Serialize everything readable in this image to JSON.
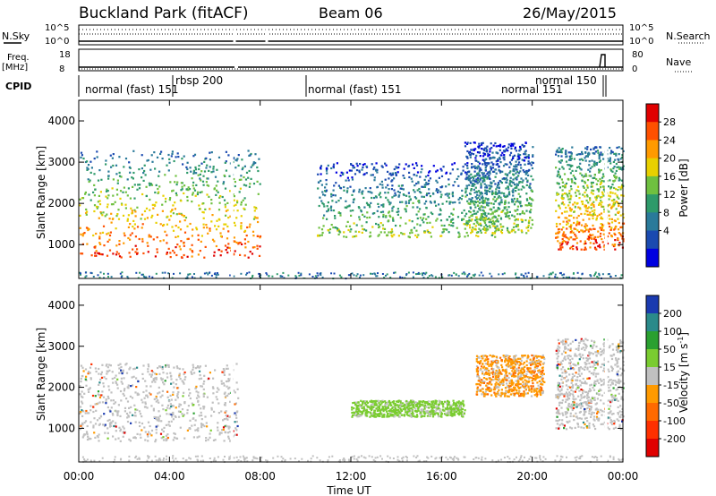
{
  "header": {
    "station": "Buckland Park (fitACF)",
    "beam": "Beam 06",
    "date": "26/May/2015"
  },
  "panels": {
    "nsky": {
      "label": "N.Sky",
      "ticks": [
        "10^5",
        "10^0"
      ],
      "right_label": "N.Search",
      "right_ticks": [
        "10^5",
        "10^0"
      ]
    },
    "freq": {
      "label_top": "Freq.",
      "label_bottom": "[MHz]",
      "ticks": [
        "18",
        "8"
      ],
      "right_label": "Nave",
      "right_ticks": [
        "80",
        "0"
      ]
    },
    "cpid": {
      "label": "CPID",
      "segments": [
        {
          "text": "normal (fast) 151",
          "start_hour": 0.0,
          "end_hour": 4.0
        },
        {
          "text": "rbsp 200",
          "start_hour": 4.0,
          "end_hour": 10.0
        },
        {
          "text": "normal (fast) 151",
          "start_hour": 10.0,
          "end_hour": 21.2
        },
        {
          "text": "normal 150",
          "start_hour": 21.2,
          "end_hour": 23.2
        },
        {
          "text": "normal 151",
          "start_hour": 21.2,
          "end_hour": 23.3
        }
      ]
    }
  },
  "chart_data": [
    {
      "type": "heatmap",
      "title": "",
      "xlabel": "",
      "ylabel": "Slant Range [km]",
      "xlim": [
        0,
        24
      ],
      "ylim": [
        180,
        4500
      ],
      "yticks": [
        "1000",
        "2000",
        "3000",
        "4000"
      ],
      "colorbar": {
        "label": "Power [dB]",
        "ticks": [
          "28",
          "24",
          "20",
          "16",
          "12",
          "8",
          "4"
        ],
        "colors": [
          "#e00000",
          "#ff5000",
          "#ff9a00",
          "#e8d000",
          "#6fc040",
          "#2e9a6a",
          "#2a7a9a",
          "#1a4ab0",
          "#0000e0"
        ]
      },
      "regions": [
        {
          "start_hour": 0.0,
          "end_hour": 8.0,
          "range_min_km": 700,
          "range_max_km": 3300,
          "peak_db": 28,
          "description_level": "strong"
        },
        {
          "start_hour": 10.5,
          "end_hour": 18.5,
          "range_min_km": 1200,
          "range_max_km": 3000,
          "peak_db": 16,
          "description_level": "moderate"
        },
        {
          "start_hour": 17.0,
          "end_hour": 20.0,
          "range_min_km": 1300,
          "range_max_km": 3500,
          "peak_db": 20,
          "description_level": "moderate"
        },
        {
          "start_hour": 21.0,
          "end_hour": 24.0,
          "range_min_km": 900,
          "range_max_km": 3400,
          "peak_db": 28,
          "description_level": "strong"
        }
      ]
    },
    {
      "type": "heatmap",
      "title": "",
      "xlabel": "Time UT",
      "ylabel": "Slant Range [km]",
      "xlim": [
        0,
        24
      ],
      "ylim": [
        180,
        4500
      ],
      "xticks": [
        "00:00",
        "04:00",
        "08:00",
        "12:00",
        "16:00",
        "20:00",
        "00:00"
      ],
      "yticks": [
        "1000",
        "2000",
        "3000",
        "4000"
      ],
      "colorbar": {
        "label_main": "Velocity",
        "label_units": "[m s",
        "label_exp": "-1",
        "label_close": "]",
        "ticks": [
          "200",
          "100",
          "50",
          "15",
          "-15",
          "-50",
          "-100",
          "-200"
        ],
        "colors": [
          "#1a3ab0",
          "#2a8a8a",
          "#2aa030",
          "#7acc30",
          "#c0c0c0",
          "#ff9a00",
          "#ff6a00",
          "#ff3000",
          "#e00000"
        ]
      },
      "regions": [
        {
          "start_hour": 0.0,
          "end_hour": 7.0,
          "range_min_km": 700,
          "range_max_km": 2600,
          "velocity_ms": 0
        },
        {
          "start_hour": 12.0,
          "end_hour": 17.0,
          "range_min_km": 1300,
          "range_max_km": 1700,
          "velocity_ms": 40
        },
        {
          "start_hour": 17.5,
          "end_hour": 20.5,
          "range_min_km": 1800,
          "range_max_km": 2800,
          "velocity_ms": -40
        },
        {
          "start_hour": 21.0,
          "end_hour": 24.0,
          "range_min_km": 1000,
          "range_max_km": 3200,
          "velocity_ms": 0
        }
      ]
    }
  ]
}
